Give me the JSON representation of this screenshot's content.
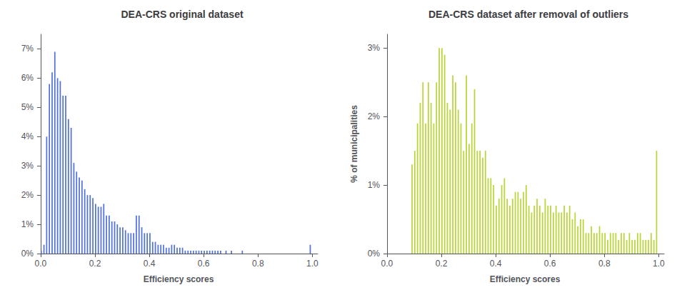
{
  "chart_data": [
    {
      "type": "histogram",
      "title": "DEA-CRS original dataset",
      "xlabel": "Efficiency scores",
      "bins": [
        0.0,
        0.01,
        0.02,
        0.03,
        0.04,
        0.05,
        0.06,
        0.07,
        0.08,
        0.09,
        0.1,
        0.11,
        0.12,
        0.13,
        0.14,
        0.15,
        0.16,
        0.17,
        0.18,
        0.19,
        0.2,
        0.21,
        0.22,
        0.23,
        0.24,
        0.25,
        0.26,
        0.27,
        0.28,
        0.29,
        0.3,
        0.31,
        0.32,
        0.33,
        0.34,
        0.35,
        0.36,
        0.37,
        0.38,
        0.39,
        0.4,
        0.41,
        0.42,
        0.43,
        0.44,
        0.45,
        0.46,
        0.47,
        0.48,
        0.49,
        0.5,
        0.51,
        0.52,
        0.53,
        0.54,
        0.55,
        0.56,
        0.57,
        0.58,
        0.59,
        0.6,
        0.61,
        0.62,
        0.63,
        0.64,
        0.65,
        0.66,
        0.67,
        0.68,
        0.69,
        0.7,
        0.71,
        0.72,
        0.73,
        0.74,
        0.75,
        0.76,
        0.77,
        0.78,
        0.79,
        0.8,
        0.81,
        0.82,
        0.83,
        0.84,
        0.85,
        0.86,
        0.87,
        0.88,
        0.89,
        0.9,
        0.91,
        0.92,
        0.93,
        0.94,
        0.95,
        0.96,
        0.97,
        0.98,
        0.99,
        1.0
      ],
      "values": [
        0.001,
        0.003,
        0.04,
        0.058,
        0.062,
        0.069,
        0.06,
        0.059,
        0.054,
        0.054,
        0.046,
        0.043,
        0.031,
        0.028,
        0.026,
        0.025,
        0.022,
        0.02,
        0.02,
        0.019,
        0.017,
        0.016,
        0.016,
        0.017,
        0.013,
        0.013,
        0.011,
        0.011,
        0.01,
        0.009,
        0.009,
        0.008,
        0.007,
        0.007,
        0.007,
        0.013,
        0.013,
        0.009,
        0.007,
        0.007,
        0.007,
        0.004,
        0.004,
        0.003,
        0.003,
        0.003,
        0.002,
        0.002,
        0.003,
        0.003,
        0.002,
        0.002,
        0.002,
        0.001,
        0.001,
        0.001,
        0.001,
        0.001,
        0.001,
        0.001,
        0.001,
        0.001,
        0.001,
        0.001,
        0.001,
        0.001,
        0.001,
        0.0,
        0.001,
        0.0,
        0.001,
        0.0,
        0.0,
        0.0,
        0.001,
        0.0,
        0.0,
        0.0,
        0.0,
        0.0,
        0.0,
        0.0,
        0.0,
        0.0,
        0.0,
        0.0,
        0.0,
        0.0,
        0.0,
        0.0,
        0.0,
        0.0,
        0.0,
        0.0,
        0.0,
        0.0,
        0.0,
        0.0,
        0.0,
        0.003
      ],
      "xlim": [
        -0.005,
        1.02
      ],
      "xticks": [
        {
          "value": 0.0,
          "label": "0.0"
        },
        0.2,
        0.4,
        0.6,
        0.8,
        {
          "value": 1.0,
          "label": "1.0"
        }
      ],
      "ylim": [
        0,
        0.075
      ],
      "yticks": [
        {
          "value": 0,
          "label": "0%"
        },
        {
          "value": 0.01,
          "label": "1%"
        },
        {
          "value": 0.02,
          "label": "2%"
        },
        {
          "value": 0.03,
          "label": "3%"
        },
        {
          "value": 0.04,
          "label": "4%"
        },
        {
          "value": 0.05,
          "label": "5%"
        },
        {
          "value": 0.06,
          "label": "6%"
        },
        {
          "value": 0.07,
          "label": "7%"
        }
      ],
      "grid": false
    },
    {
      "type": "histogram",
      "title": "DEA-CRS dataset after removal of outliers",
      "xlabel": "Efficiency scores",
      "ylabel": "% of municipalities",
      "bins": [
        0.0,
        0.01,
        0.02,
        0.03,
        0.04,
        0.05,
        0.06,
        0.07,
        0.08,
        0.09,
        0.1,
        0.11,
        0.12,
        0.13,
        0.14,
        0.15,
        0.16,
        0.17,
        0.18,
        0.19,
        0.2,
        0.21,
        0.22,
        0.23,
        0.24,
        0.25,
        0.26,
        0.27,
        0.28,
        0.29,
        0.3,
        0.31,
        0.32,
        0.33,
        0.34,
        0.35,
        0.36,
        0.37,
        0.38,
        0.39,
        0.4,
        0.41,
        0.42,
        0.43,
        0.44,
        0.45,
        0.46,
        0.47,
        0.48,
        0.49,
        0.5,
        0.51,
        0.52,
        0.53,
        0.54,
        0.55,
        0.56,
        0.57,
        0.58,
        0.59,
        0.6,
        0.61,
        0.62,
        0.63,
        0.64,
        0.65,
        0.66,
        0.67,
        0.68,
        0.69,
        0.7,
        0.71,
        0.72,
        0.73,
        0.74,
        0.75,
        0.76,
        0.77,
        0.78,
        0.79,
        0.8,
        0.81,
        0.82,
        0.83,
        0.84,
        0.85,
        0.86,
        0.87,
        0.88,
        0.89,
        0.9,
        0.91,
        0.92,
        0.93,
        0.94,
        0.95,
        0.96,
        0.97,
        0.98,
        0.99,
        1.0
      ],
      "values": [
        0.0,
        0.0,
        0.0,
        0.0,
        0.0,
        0.0,
        0.0,
        0.0,
        0.0,
        0.013,
        0.015,
        0.019,
        0.022,
        0.025,
        0.019,
        0.025,
        0.022,
        0.019,
        0.025,
        0.03,
        0.03,
        0.029,
        0.022,
        0.021,
        0.026,
        0.025,
        0.021,
        0.019,
        0.015,
        0.026,
        0.016,
        0.019,
        0.024,
        0.015,
        0.015,
        0.014,
        0.015,
        0.011,
        0.011,
        0.01,
        0.007,
        0.008,
        0.01,
        0.011,
        0.008,
        0.007,
        0.008,
        0.009,
        0.009,
        0.008,
        0.009,
        0.01,
        0.007,
        0.006,
        0.007,
        0.008,
        0.007,
        0.006,
        0.008,
        0.007,
        0.007,
        0.006,
        0.007,
        0.006,
        0.006,
        0.007,
        0.006,
        0.007,
        0.005,
        0.006,
        0.004,
        0.005,
        0.005,
        0.003,
        0.003,
        0.004,
        0.003,
        0.003,
        0.004,
        0.003,
        0.003,
        0.002,
        0.003,
        0.003,
        0.003,
        0.002,
        0.003,
        0.003,
        0.002,
        0.003,
        0.002,
        0.002,
        0.003,
        0.003,
        0.002,
        0.002,
        0.002,
        0.003,
        0.002,
        0.015
      ],
      "xlim": [
        -0.005,
        1.02
      ],
      "xticks": [
        {
          "value": 0.0,
          "label": "0.0"
        },
        0.2,
        0.4,
        0.6,
        0.8,
        {
          "value": 1.0,
          "label": "1.0"
        }
      ],
      "ylim": [
        0,
        0.032
      ],
      "yticks": [
        {
          "value": 0,
          "label": "0%"
        },
        {
          "value": 0.01,
          "label": "1%"
        },
        {
          "value": 0.02,
          "label": "2%"
        },
        {
          "value": 0.03,
          "label": "3%"
        }
      ],
      "grid": false
    }
  ]
}
